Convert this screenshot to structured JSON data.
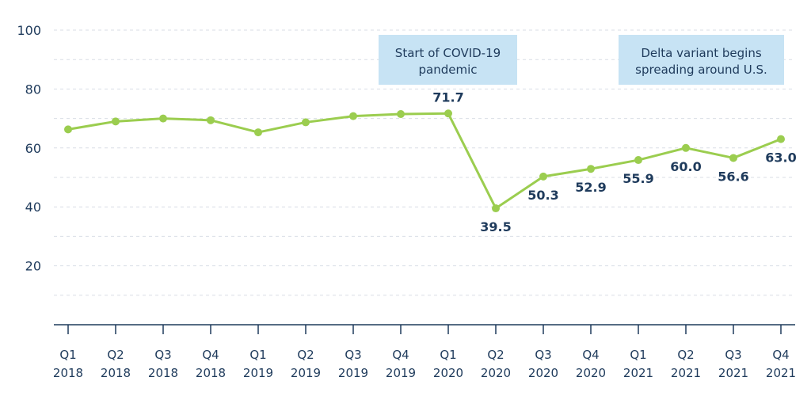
{
  "colors": {
    "line": "#9bcd4f",
    "text": "#1f3b5c",
    "grid": "#d9dee6",
    "axis": "#1f3b5c",
    "annotation_bg": "#c7e3f4"
  },
  "chart_data": {
    "type": "line",
    "title": "",
    "xlabel": "",
    "ylabel": "",
    "ylim": [
      0,
      100
    ],
    "yticks": [
      20,
      40,
      60,
      80,
      100
    ],
    "grid": true,
    "categories": [
      [
        "Q1",
        "2018"
      ],
      [
        "Q2",
        "2018"
      ],
      [
        "Q3",
        "2018"
      ],
      [
        "Q4",
        "2018"
      ],
      [
        "Q1",
        "2019"
      ],
      [
        "Q2",
        "2019"
      ],
      [
        "Q3",
        "2019"
      ],
      [
        "Q4",
        "2019"
      ],
      [
        "Q1",
        "2020"
      ],
      [
        "Q2",
        "2020"
      ],
      [
        "Q3",
        "2020"
      ],
      [
        "Q4",
        "2020"
      ],
      [
        "Q1",
        "2021"
      ],
      [
        "Q2",
        "2021"
      ],
      [
        "Q3",
        "2021"
      ],
      [
        "Q4",
        "2021"
      ]
    ],
    "series": [
      {
        "values": [
          66.3,
          69.0,
          70.0,
          69.4,
          65.3,
          68.7,
          70.8,
          71.5,
          71.7,
          39.5,
          50.3,
          52.9,
          55.9,
          60.0,
          56.6,
          63.0
        ],
        "data_labels": [
          null,
          null,
          null,
          null,
          null,
          null,
          null,
          null,
          "71.7",
          "39.5",
          "50.3",
          "52.9",
          "55.9",
          "60.0",
          "56.6",
          "63.0"
        ]
      }
    ],
    "annotations": [
      {
        "lines": [
          "Start of COVID-19",
          "pandemic"
        ],
        "category_index": 8
      },
      {
        "lines": [
          "Delta variant begins",
          "spreading around U.S."
        ],
        "category_index": 13
      }
    ]
  }
}
